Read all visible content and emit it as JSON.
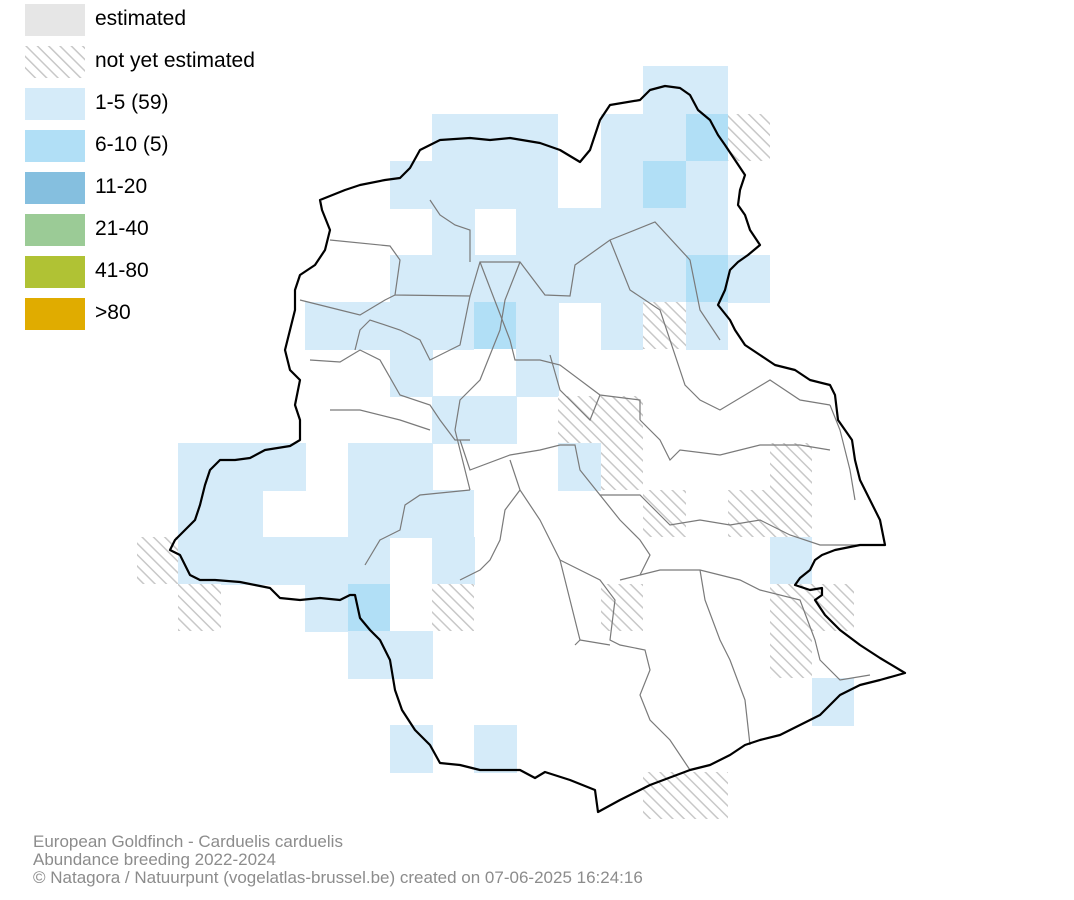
{
  "legend": {
    "items": [
      {
        "key": "estimated",
        "label": "estimated",
        "fill": "#e6e6e6",
        "hatched": false
      },
      {
        "key": "not-yet-estimated",
        "label": "not yet estimated",
        "fill": "#ffffff",
        "hatched": true
      },
      {
        "key": "1-5",
        "label": "1-5 (59)",
        "fill": "#d5ebf9",
        "hatched": false
      },
      {
        "key": "6-10",
        "label": "6-10 (5)",
        "fill": "#b1dff6",
        "hatched": false
      },
      {
        "key": "11-20",
        "label": "11-20",
        "fill": "#85bfdf",
        "hatched": false
      },
      {
        "key": "21-40",
        "label": "21-40",
        "fill": "#9bcb96",
        "hatched": false
      },
      {
        "key": "41-80",
        "label": "41-80",
        "fill": "#b0c234",
        "hatched": false
      },
      {
        "key": ">80",
        "label": ">80",
        "fill": "#e0ac00",
        "hatched": false
      }
    ]
  },
  "map_colors": {
    "boundary": "#000000",
    "communes": "#7a7a7a",
    "hatch": "#c8c8c8"
  },
  "footer": {
    "species": "European Goldfinch - Carduelis carduelis",
    "dataset": "Abundance breeding 2022-2024",
    "credit": "© Natagora / Natuurpunt (vogelatlas-brussel.be) created on 07-06-2025 16:24:16"
  }
}
